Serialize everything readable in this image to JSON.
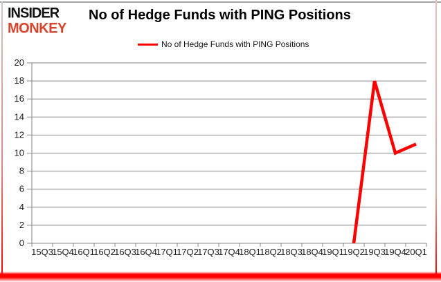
{
  "logo": {
    "line1": "INSIDER",
    "line2": "MONKEY",
    "color": "#d8432c"
  },
  "header": {
    "title": "No of Hedge Funds with PING Positions"
  },
  "legend": {
    "label": "No of Hedge Funds with PING Positions",
    "line_color": "#ff0000"
  },
  "chart_data": {
    "type": "line",
    "title": "No of Hedge Funds with PING Positions",
    "categories": [
      "15Q3",
      "15Q4",
      "16Q1",
      "16Q2",
      "16Q3",
      "16Q4",
      "17Q1",
      "17Q2",
      "17Q3",
      "17Q4",
      "18Q1",
      "18Q2",
      "18Q3",
      "18Q4",
      "19Q1",
      "19Q2",
      "19Q3",
      "19Q4",
      "20Q1"
    ],
    "series": [
      {
        "name": "No of Hedge Funds with PING Positions",
        "color": "#ff0000",
        "values": [
          null,
          null,
          null,
          null,
          null,
          null,
          null,
          null,
          null,
          null,
          null,
          null,
          null,
          null,
          null,
          0,
          18,
          10,
          11
        ]
      }
    ],
    "xlabel": "",
    "ylabel": "",
    "ylim": [
      0,
      20
    ],
    "ytick_step": 2,
    "grid": "horizontal",
    "gridline_color": "#848484",
    "axis_color": "#848484",
    "legend_position": "top"
  }
}
